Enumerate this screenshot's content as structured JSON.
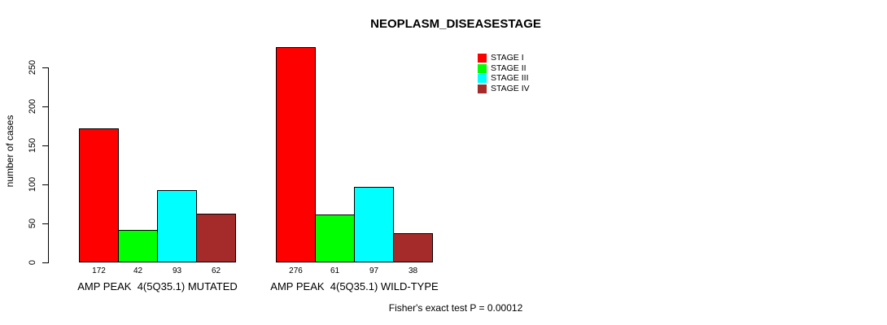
{
  "chart_data": {
    "type": "bar",
    "title": "NEOPLASM_DISEASESTAGE",
    "xlabel": "",
    "ylabel": "number of cases",
    "ylim": [
      0,
      250
    ],
    "yticks": [
      0,
      50,
      100,
      150,
      200,
      250
    ],
    "grid": false,
    "legend_position": "top-right",
    "categories": [
      "AMP PEAK  4(5Q35.1) MUTATED",
      "AMP PEAK  4(5Q35.1) WILD-TYPE"
    ],
    "series": [
      {
        "name": "STAGE I",
        "color": "#FF0000",
        "values": [
          172,
          276
        ]
      },
      {
        "name": "STAGE II",
        "color": "#00FF00",
        "values": [
          42,
          61
        ]
      },
      {
        "name": "STAGE III",
        "color": "#00FFFF",
        "values": [
          93,
          97
        ]
      },
      {
        "name": "STAGE IV",
        "color": "#A52A2A",
        "values": [
          62,
          38
        ]
      }
    ],
    "bar_value_labels": [
      [
        172,
        42,
        93,
        62
      ],
      [
        276,
        61,
        97,
        38
      ]
    ],
    "annotation": "Fisher's exact test P = 0.00012",
    "axis_color": "#000000",
    "bar_border_color": "#000000",
    "background_color": "#FFFFFF"
  }
}
